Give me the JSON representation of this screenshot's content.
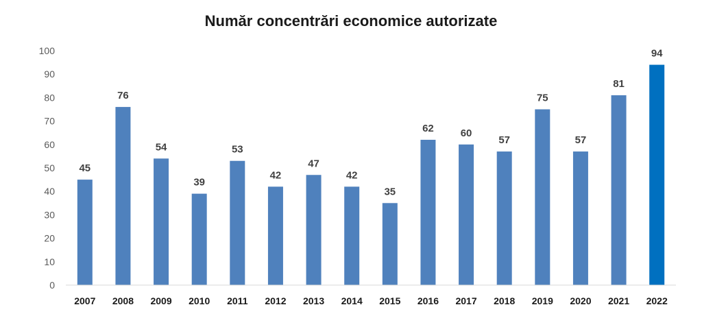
{
  "chart_data": {
    "type": "bar",
    "title": "Număr concentrări economice autorizate",
    "categories": [
      "2007",
      "2008",
      "2009",
      "2010",
      "2011",
      "2012",
      "2013",
      "2014",
      "2015",
      "2016",
      "2017",
      "2018",
      "2019",
      "2020",
      "2021",
      "2022"
    ],
    "values": [
      45,
      76,
      54,
      39,
      53,
      42,
      47,
      42,
      35,
      62,
      60,
      57,
      75,
      57,
      81,
      94
    ],
    "ylim": [
      0,
      100
    ],
    "yticks": [
      0,
      10,
      20,
      30,
      40,
      50,
      60,
      70,
      80,
      90,
      100
    ],
    "grid": false,
    "legend": "none",
    "colors": {
      "bar": "#4F81BD",
      "highlight_bar": "#0070C0",
      "axis": "#D9D9D9"
    },
    "highlight_index": 15
  }
}
